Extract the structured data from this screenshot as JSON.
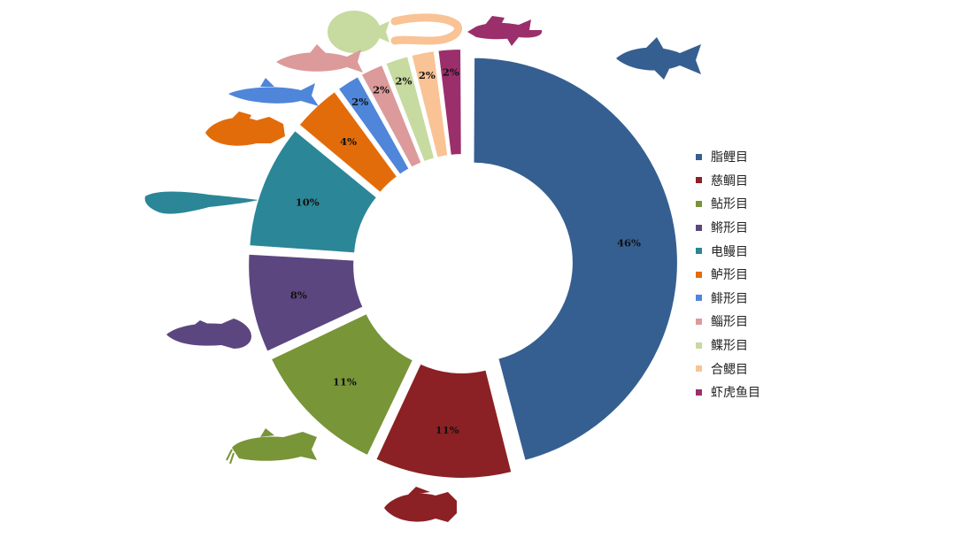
{
  "chart_data": {
    "type": "pie",
    "variant": "donut",
    "title": "",
    "legend_position": "right",
    "labels_format": "percent",
    "slices": [
      {
        "name": "脂鲤目",
        "value": 46,
        "label": "46%",
        "color": "#365f91",
        "icon": "characin-fish-icon"
      },
      {
        "name": "慈鲷目",
        "value": 11,
        "label": "11%",
        "color": "#8b2124",
        "icon": "cichlid-fish-icon"
      },
      {
        "name": "鲇形目",
        "value": 11,
        "label": "11%",
        "color": "#789538",
        "icon": "catfish-icon"
      },
      {
        "name": "鳉形目",
        "value": 8,
        "label": "8%",
        "color": "#5b4680",
        "icon": "killifish-icon"
      },
      {
        "name": "电鳗目",
        "value": 10,
        "label": "10%",
        "color": "#2b8697",
        "icon": "knifefish-icon"
      },
      {
        "name": "鲈形目",
        "value": 4,
        "label": "4%",
        "color": "#e36c0a",
        "icon": "perch-fish-icon"
      },
      {
        "name": "鲱形目",
        "value": 2,
        "label": "2%",
        "color": "#4f86d9",
        "icon": "herring-fish-icon"
      },
      {
        "name": "鲻形目",
        "value": 2,
        "label": "2%",
        "color": "#dc9a9b",
        "icon": "mullet-fish-icon"
      },
      {
        "name": "鲽形目",
        "value": 2,
        "label": "2%",
        "color": "#c7daa0",
        "icon": "flatfish-icon"
      },
      {
        "name": "合鳃目",
        "value": 2,
        "label": "2%",
        "color": "#f9c395",
        "icon": "swamp-eel-icon"
      },
      {
        "name": "虾虎鱼目",
        "value": 2,
        "label": "2%",
        "color": "#9b2f6b",
        "icon": "goby-fish-icon"
      }
    ]
  }
}
